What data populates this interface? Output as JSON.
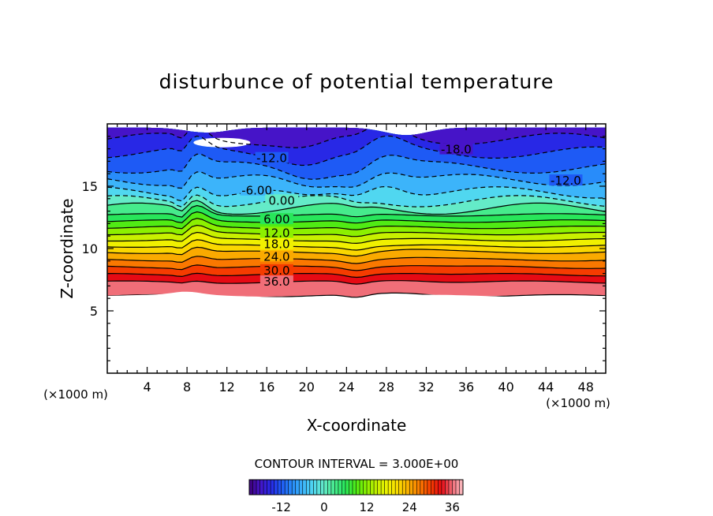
{
  "chart_data": {
    "type": "contour",
    "title": "disturbunce of potential temperature",
    "xlabel": "X-coordinate",
    "ylabel": "Z-coordinate",
    "x_unit_label": "(×1000 m)",
    "z_unit_label": "(×1000 m)",
    "xlim": [
      0,
      50
    ],
    "ylim": [
      0,
      20
    ],
    "x_ticks": [
      4,
      8,
      12,
      16,
      20,
      24,
      28,
      32,
      36,
      40,
      44,
      48
    ],
    "x_tick_labels": [
      "4",
      "8",
      "12",
      "16",
      "20",
      "24",
      "28",
      "32",
      "36",
      "40",
      "44",
      "48"
    ],
    "y_ticks": [
      5,
      10,
      15
    ],
    "y_tick_labels": [
      "5",
      "10",
      "15"
    ],
    "contour_interval_text": "CONTOUR INTERVAL = 3.000E+00",
    "contour_interval": 3.0,
    "colorbar": {
      "range": [
        -21,
        39
      ],
      "ticks": [
        -12,
        0,
        12,
        24,
        36
      ],
      "tick_labels": [
        "-12",
        "0",
        "12",
        "24",
        "36"
      ]
    },
    "contour_labels": [
      {
        "text": "-12.0",
        "x": 16.5,
        "z": 17.3
      },
      {
        "text": "-18.0",
        "x": 35.0,
        "z": 18.0
      },
      {
        "text": "-12.0",
        "x": 46.0,
        "z": 15.5
      },
      {
        "text": "-6.00",
        "x": 15.0,
        "z": 14.7
      },
      {
        "text": "0.00",
        "x": 17.5,
        "z": 13.9
      },
      {
        "text": "6.00",
        "x": 17.0,
        "z": 12.4
      },
      {
        "text": "12.0",
        "x": 17.0,
        "z": 11.3
      },
      {
        "text": "18.0",
        "x": 17.0,
        "z": 10.4
      },
      {
        "text": "24.0",
        "x": 17.0,
        "z": 9.4
      },
      {
        "text": "30.0",
        "x": 17.0,
        "z": 8.3
      },
      {
        "text": "36.0",
        "x": 17.0,
        "z": 7.4
      }
    ],
    "field_layers": [
      {
        "value": 36,
        "z_base": 6.2
      },
      {
        "value": 33,
        "z_base": 7.3
      },
      {
        "value": 30,
        "z_base": 7.9
      },
      {
        "value": 27,
        "z_base": 8.5
      },
      {
        "value": 24,
        "z_base": 9.1
      },
      {
        "value": 21,
        "z_base": 9.7
      },
      {
        "value": 18,
        "z_base": 10.2
      },
      {
        "value": 15,
        "z_base": 10.7
      },
      {
        "value": 12,
        "z_base": 11.2
      },
      {
        "value": 9,
        "z_base": 11.7
      },
      {
        "value": 6,
        "z_base": 12.2
      },
      {
        "value": 3,
        "z_base": 12.7
      },
      {
        "value": 0,
        "z_base": 13.2
      },
      {
        "value": -3,
        "z_base": 13.8
      },
      {
        "value": -6,
        "z_base": 14.5
      },
      {
        "value": -9,
        "z_base": 15.5
      },
      {
        "value": -12,
        "z_base": 16.5
      },
      {
        "value": -15,
        "z_base": 17.7
      },
      {
        "value": -18,
        "z_base": 18.8
      }
    ]
  }
}
